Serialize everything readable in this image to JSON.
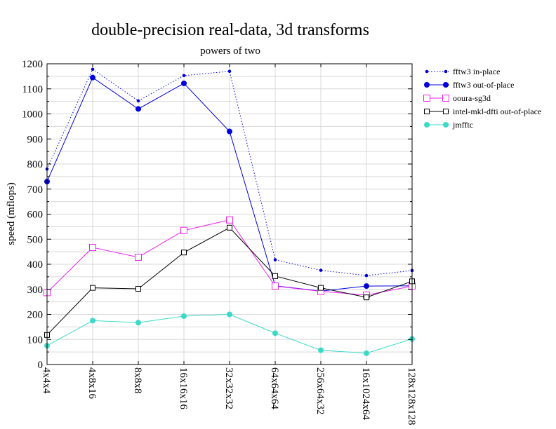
{
  "chart_data": {
    "type": "line",
    "title": "double-precision real-data, 3d transforms",
    "subtitle": "powers of two",
    "xlabel": "",
    "ylabel": "speed (mflops)",
    "categories": [
      "4x4x4",
      "4x8x16",
      "8x8x8",
      "16x16x16",
      "32x32x32",
      "64x64x64",
      "256x64x32",
      "16x1024x64",
      "128x128x128"
    ],
    "ylim": [
      0,
      1200
    ],
    "yticks": [
      0,
      100,
      200,
      300,
      400,
      500,
      600,
      700,
      800,
      900,
      1000,
      1100,
      1200
    ],
    "grid": true,
    "legend_position": "right",
    "series": [
      {
        "name": "fftw3 in-place",
        "color": "#0000dd",
        "dash": "dotted",
        "marker": "small-dot",
        "values": [
          780,
          1178,
          1052,
          1153,
          1170,
          418,
          376,
          355,
          375
        ]
      },
      {
        "name": "fftw3 out-of-place",
        "color": "#0000dd",
        "dash": "solid",
        "marker": "dot",
        "values": [
          730,
          1145,
          1020,
          1122,
          930,
          314,
          293,
          313,
          314
        ]
      },
      {
        "name": "ooura-sg3d",
        "color": "#ee22ee",
        "dash": "solid",
        "marker": "square",
        "values": [
          287,
          467,
          428,
          535,
          577,
          313,
          292,
          277,
          313
        ]
      },
      {
        "name": "intel-mkl-dfti out-of-place",
        "color": "#000000",
        "dash": "solid",
        "marker": "small-square",
        "values": [
          118,
          306,
          302,
          447,
          546,
          353,
          306,
          268,
          332
        ]
      },
      {
        "name": "jmfftc",
        "color": "#3cd9c8",
        "dash": "solid",
        "marker": "dot",
        "values": [
          75,
          175,
          167,
          193,
          200,
          125,
          57,
          45,
          102
        ]
      }
    ]
  }
}
